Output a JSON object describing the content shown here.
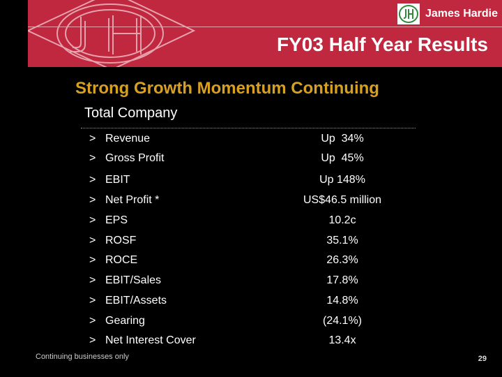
{
  "header": {
    "brand_name": "James Hardie",
    "title": "FY03 Half Year Results",
    "accent_color": "#c0283f"
  },
  "subtitle": "Strong Growth Momentum Continuing",
  "section_title": "Total Company",
  "arrow_glyph": ">",
  "metrics": [
    {
      "label": "Revenue",
      "value": "Up  34%"
    },
    {
      "label": "Gross Profit",
      "value": "Up  45%"
    },
    {
      "label": "EBIT",
      "value": "Up 148%"
    },
    {
      "label": "Net Profit *",
      "value": "US$46.5 million"
    },
    {
      "label": "EPS",
      "value": "10.2c"
    },
    {
      "label": "ROSF",
      "value": "35.1%"
    },
    {
      "label": "ROCE",
      "value": "26.3%"
    },
    {
      "label": "EBIT/Sales",
      "value": "17.8%"
    },
    {
      "label": "EBIT/Assets",
      "value": "14.8%"
    },
    {
      "label": "Gearing",
      "value": "(24.1%)"
    },
    {
      "label": "Net Interest Cover",
      "value": "13.4x"
    }
  ],
  "footnote": "Continuing businesses only",
  "page_number": "29"
}
